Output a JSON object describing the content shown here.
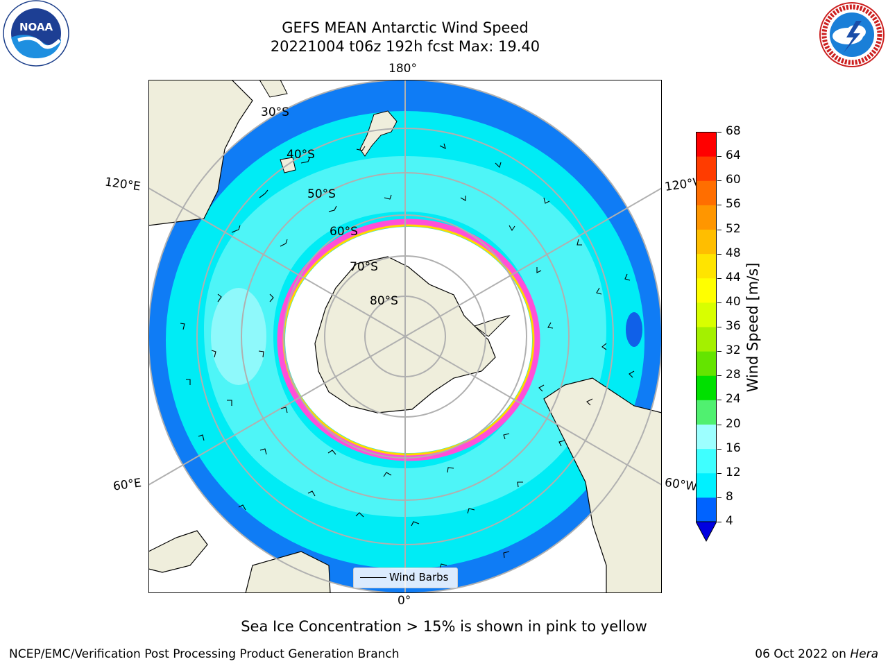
{
  "header": {
    "title_line1": "GEFS MEAN Antarctic Wind Speed",
    "title_line2": "20221004 t06z 192h fcst   Max: 19.40"
  },
  "logos": {
    "left": {
      "icon": "noaa-logo",
      "text": "NOAA"
    },
    "right": {
      "icon": "nws-logo",
      "text": "NATIONAL WEATHER SERVICE"
    }
  },
  "map": {
    "longitude_labels": {
      "top": "180°",
      "bottom": "0°",
      "upper_left": "120°E",
      "lower_left": "60°E",
      "upper_right": "120°W",
      "lower_right": "60°W"
    },
    "latitude_labels": [
      "30°S",
      "40°S",
      "50°S",
      "60°S",
      "70°S",
      "80°S"
    ],
    "legend_label": "Wind Barbs",
    "colors": {
      "land": "#efeedc",
      "ocean_low": "#0f7cf5",
      "ocean_mid": "#00ecf5",
      "ocean_high": "#4ef5f7",
      "sea_ice_edge": "#ff4fd8",
      "sea_ice_inner": "#ffd700"
    }
  },
  "colorbar": {
    "label": "Wind Speed [m/s]",
    "ticks": [
      "4",
      "8",
      "12",
      "16",
      "20",
      "24",
      "28",
      "32",
      "36",
      "40",
      "44",
      "48",
      "52",
      "56",
      "60",
      "64",
      "68"
    ],
    "colors": [
      "#0063ff",
      "#00f0ff",
      "#3fffff",
      "#9dffff",
      "#50f070",
      "#00e000",
      "#64e400",
      "#a4f000",
      "#d8ff00",
      "#ffff00",
      "#ffe400",
      "#ffbe00",
      "#ff9600",
      "#ff6e00",
      "#ff3c00",
      "#ff0000"
    ],
    "under_color": "#0000e0"
  },
  "notes": {
    "sea_ice": "Sea Ice Concentration > 15% is shown in pink to yellow"
  },
  "footer": {
    "left": "NCEP/EMC/Verification Post Processing Product Generation Branch",
    "right_prefix": "06 Oct 2022 on ",
    "right_host": "Hera"
  }
}
